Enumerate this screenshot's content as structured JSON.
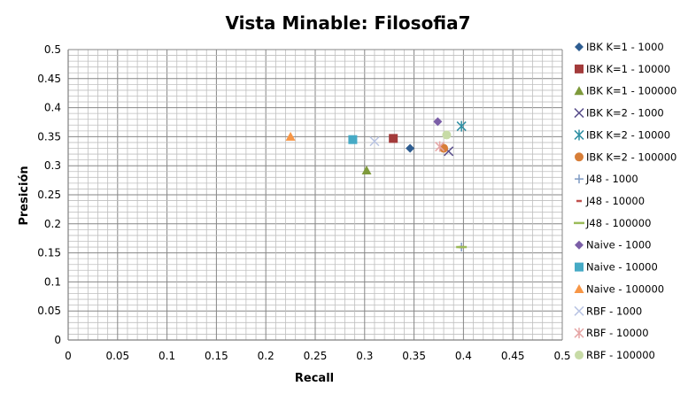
{
  "chart_data": {
    "type": "scatter",
    "title": "Vista Minable: Filosofia7",
    "xlabel": "Recall",
    "ylabel": "Presición",
    "xlim": [
      0,
      0.5
    ],
    "ylim": [
      0,
      0.5
    ],
    "xticks": [
      "0",
      "0.05",
      "0.1",
      "0.15",
      "0.2",
      "0.25",
      "0.3",
      "0.35",
      "0.4",
      "0.45",
      "0.5"
    ],
    "yticks": [
      "0",
      "0.05",
      "0.1",
      "0.15",
      "0.2",
      "0.25",
      "0.3",
      "0.35",
      "0.4",
      "0.45",
      "0.5"
    ],
    "grid": "major and minor",
    "legend_position": "right",
    "series": [
      {
        "name": "IBK K=1 - 1000",
        "marker": "diamond",
        "color": "#2E5D91",
        "points": [
          [
            0.346,
            0.33
          ]
        ]
      },
      {
        "name": "IBK K=1 - 10000",
        "marker": "square",
        "color": "#A33B3B",
        "points": [
          [
            0.329,
            0.347
          ]
        ]
      },
      {
        "name": "IBK K=1 - 100000",
        "marker": "triangle",
        "color": "#7E9A3B",
        "points": [
          [
            0.302,
            0.292
          ]
        ]
      },
      {
        "name": "IBK K=2 - 1000",
        "marker": "x",
        "color": "#5A4F8C",
        "points": [
          [
            0.385,
            0.325
          ]
        ]
      },
      {
        "name": "IBK K=2 - 10000",
        "marker": "star",
        "color": "#2F8FA3",
        "points": [
          [
            0.398,
            0.368
          ]
        ]
      },
      {
        "name": "IBK K=2 - 100000",
        "marker": "circle",
        "color": "#D77E38",
        "points": [
          [
            0.38,
            0.33
          ]
        ]
      },
      {
        "name": "J48 - 1000",
        "marker": "plus",
        "color": "#7F9BC4",
        "points": [
          [
            0.398,
            0.16
          ]
        ]
      },
      {
        "name": "J48 - 10000",
        "marker": "dash",
        "color": "#C0504D",
        "points": [
          [
            0.398,
            0.16
          ]
        ]
      },
      {
        "name": "J48 - 100000",
        "marker": "longdash",
        "color": "#9BBB59",
        "points": [
          [
            0.398,
            0.16
          ]
        ]
      },
      {
        "name": "Naive - 1000",
        "marker": "diamond",
        "color": "#7B5EA7",
        "points": [
          [
            0.374,
            0.376
          ]
        ]
      },
      {
        "name": "Naive - 10000",
        "marker": "square",
        "color": "#46AAC5",
        "points": [
          [
            0.288,
            0.345
          ]
        ]
      },
      {
        "name": "Naive - 100000",
        "marker": "triangle",
        "color": "#F79646",
        "points": [
          [
            0.225,
            0.35
          ]
        ]
      },
      {
        "name": "RBF - 1000",
        "marker": "x",
        "color": "#B9C4E3",
        "points": [
          [
            0.31,
            0.342
          ]
        ]
      },
      {
        "name": "RBF - 10000",
        "marker": "star",
        "color": "#E6A6A6",
        "points": [
          [
            0.376,
            0.333
          ]
        ]
      },
      {
        "name": "RBF - 100000",
        "marker": "circle",
        "color": "#C7DBA6",
        "points": [
          [
            0.383,
            0.353
          ]
        ]
      }
    ]
  }
}
